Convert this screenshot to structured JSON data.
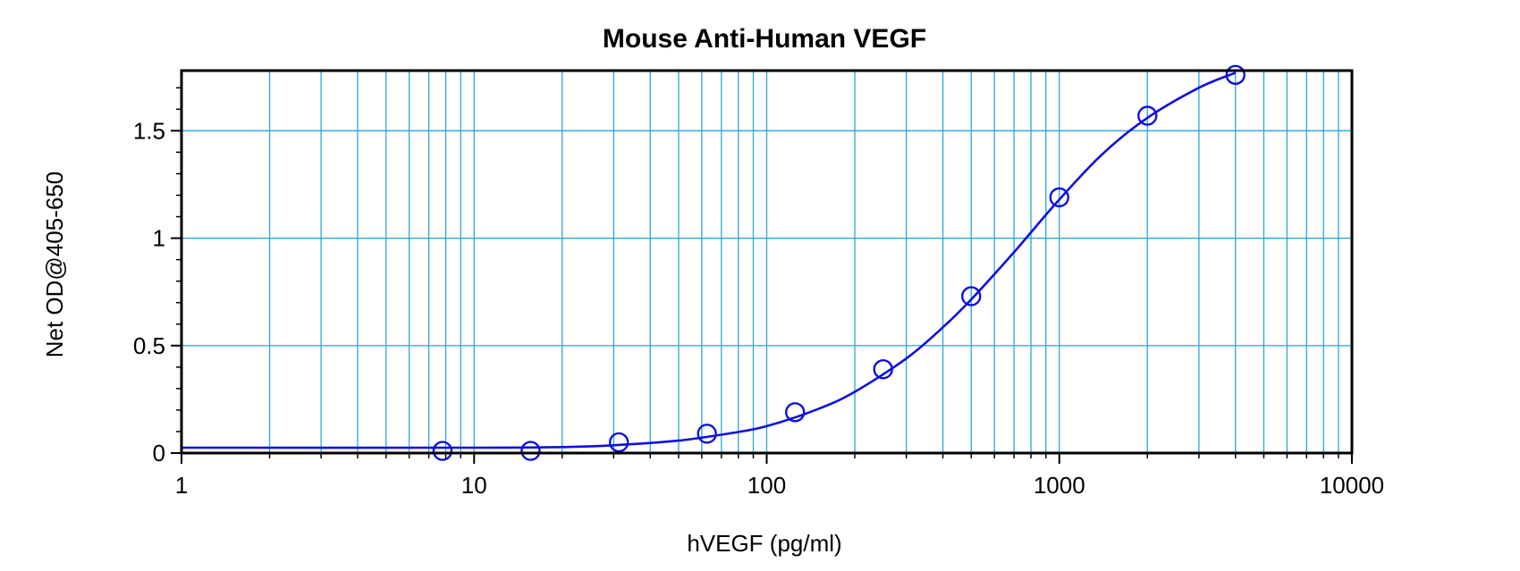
{
  "chart_data": {
    "type": "scatter",
    "title": "Mouse Anti-Human VEGF",
    "xlabel": "hVEGF (pg/ml)",
    "ylabel": "Net OD@405-650",
    "x_scale": "log",
    "xlim": [
      1,
      10000
    ],
    "ylim": [
      0,
      1.78
    ],
    "x_ticks": [
      {
        "value": 1,
        "label": "1"
      },
      {
        "value": 10,
        "label": "10"
      },
      {
        "value": 100,
        "label": "100"
      },
      {
        "value": 1000,
        "label": "1000"
      },
      {
        "value": 10000,
        "label": "10000"
      }
    ],
    "y_ticks": [
      {
        "value": 0,
        "label": "0"
      },
      {
        "value": 0.5,
        "label": "0.5"
      },
      {
        "value": 1,
        "label": "1"
      },
      {
        "value": 1.5,
        "label": "1.5"
      }
    ],
    "grid": true,
    "series": [
      {
        "points": [
          {
            "x": 7.8,
            "y": 0.01
          },
          {
            "x": 15.6,
            "y": 0.01
          },
          {
            "x": 31.25,
            "y": 0.05
          },
          {
            "x": 62.5,
            "y": 0.09
          },
          {
            "x": 125,
            "y": 0.19
          },
          {
            "x": 250,
            "y": 0.39
          },
          {
            "x": 500,
            "y": 0.73
          },
          {
            "x": 1000,
            "y": 1.19
          },
          {
            "x": 2000,
            "y": 1.57
          },
          {
            "x": 4000,
            "y": 1.76
          }
        ]
      }
    ],
    "fit_curve": [
      {
        "x": 1,
        "y": 0.025
      },
      {
        "x": 10,
        "y": 0.025
      },
      {
        "x": 20,
        "y": 0.028
      },
      {
        "x": 30,
        "y": 0.036
      },
      {
        "x": 50,
        "y": 0.058
      },
      {
        "x": 75,
        "y": 0.092
      },
      {
        "x": 100,
        "y": 0.125
      },
      {
        "x": 150,
        "y": 0.205
      },
      {
        "x": 200,
        "y": 0.285
      },
      {
        "x": 300,
        "y": 0.44
      },
      {
        "x": 400,
        "y": 0.585
      },
      {
        "x": 500,
        "y": 0.715
      },
      {
        "x": 700,
        "y": 0.935
      },
      {
        "x": 1000,
        "y": 1.18
      },
      {
        "x": 1400,
        "y": 1.39
      },
      {
        "x": 2000,
        "y": 1.56
      },
      {
        "x": 3000,
        "y": 1.7
      },
      {
        "x": 4000,
        "y": 1.77
      }
    ],
    "colors": {
      "series": "#1010dd",
      "grid": "#2aa6d8",
      "axes": "#000000"
    }
  }
}
